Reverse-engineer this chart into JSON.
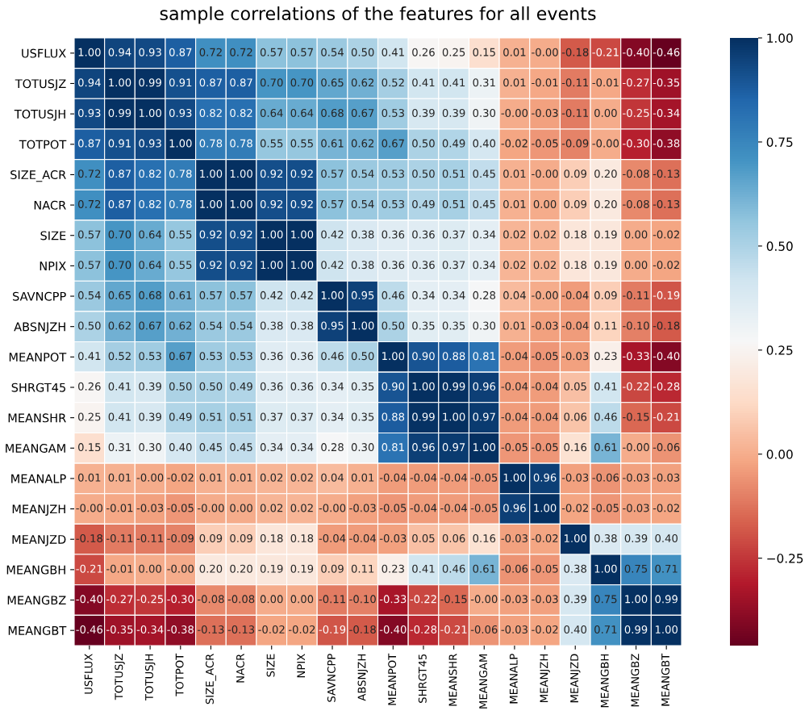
{
  "chart_data": {
    "type": "heatmap",
    "title": "sample correlations of the features for all events",
    "categories": [
      "USFLUX",
      "TOTUSJZ",
      "TOTUSJH",
      "TOTPOT",
      "SIZE_ACR",
      "NACR",
      "SIZE",
      "NPIX",
      "SAVNCPP",
      "ABSNJZH",
      "MEANPOT",
      "SHRGT45",
      "MEANSHR",
      "MEANGAM",
      "MEANALP",
      "MEANJZH",
      "MEANJZD",
      "MEANGBH",
      "MEANGBZ",
      "MEANGBT"
    ],
    "y_categories": [
      "USFLUX",
      "TOTUSJZ",
      "TOTUSJH",
      "TOTPOT",
      "SIZE_ACR",
      "NACR",
      "SIZE",
      "NPIX",
      "SAVNCPP",
      "ABSNJZH",
      "MEANPOT",
      "SHRGT45",
      "MEANSHR",
      "MEANGAM",
      "MEANALP",
      "MEANJZH",
      "MEANJZD",
      "MEANGBH",
      "MEANGBZ",
      "MEANGBT"
    ],
    "cells": [
      [
        1.0,
        0.94,
        0.93,
        0.87,
        0.72,
        0.72,
        0.57,
        0.57,
        0.54,
        0.5,
        0.41,
        0.26,
        0.25,
        0.15,
        0.01,
        -0.0,
        -0.18,
        -0.21,
        -0.4,
        -0.46
      ],
      [
        0.94,
        1.0,
        0.99,
        0.91,
        0.87,
        0.87,
        0.7,
        0.7,
        0.65,
        0.62,
        0.52,
        0.41,
        0.41,
        0.31,
        0.01,
        -0.01,
        -0.11,
        -0.01,
        -0.27,
        -0.35
      ],
      [
        0.93,
        0.99,
        1.0,
        0.93,
        0.82,
        0.82,
        0.64,
        0.64,
        0.68,
        0.67,
        0.53,
        0.39,
        0.39,
        0.3,
        -0.0,
        -0.03,
        -0.11,
        0.0,
        -0.25,
        -0.34
      ],
      [
        0.87,
        0.91,
        0.93,
        1.0,
        0.78,
        0.78,
        0.55,
        0.55,
        0.61,
        0.62,
        0.67,
        0.5,
        0.49,
        0.4,
        -0.02,
        -0.05,
        -0.09,
        -0.0,
        -0.3,
        -0.38
      ],
      [
        0.72,
        0.87,
        0.82,
        0.78,
        1.0,
        1.0,
        0.92,
        0.92,
        0.57,
        0.54,
        0.53,
        0.5,
        0.51,
        0.45,
        0.01,
        -0.0,
        0.09,
        0.2,
        -0.08,
        -0.13
      ],
      [
        0.72,
        0.87,
        0.82,
        0.78,
        1.0,
        1.0,
        0.92,
        0.92,
        0.57,
        0.54,
        0.53,
        0.49,
        0.51,
        0.45,
        0.01,
        0.0,
        0.09,
        0.2,
        -0.08,
        -0.13
      ],
      [
        0.57,
        0.7,
        0.64,
        0.55,
        0.92,
        0.92,
        1.0,
        1.0,
        0.42,
        0.38,
        0.36,
        0.36,
        0.37,
        0.34,
        0.02,
        0.02,
        0.18,
        0.19,
        0.0,
        -0.02
      ],
      [
        0.57,
        0.7,
        0.64,
        0.55,
        0.92,
        0.92,
        1.0,
        1.0,
        0.42,
        0.38,
        0.36,
        0.36,
        0.37,
        0.34,
        0.02,
        0.02,
        0.18,
        0.19,
        0.0,
        -0.02
      ],
      [
        0.54,
        0.65,
        0.68,
        0.61,
        0.57,
        0.57,
        0.42,
        0.42,
        1.0,
        0.95,
        0.46,
        0.34,
        0.34,
        0.28,
        0.04,
        -0.0,
        -0.04,
        0.09,
        -0.11,
        -0.19
      ],
      [
        0.5,
        0.62,
        0.67,
        0.62,
        0.54,
        0.54,
        0.38,
        0.38,
        0.95,
        1.0,
        0.5,
        0.35,
        0.35,
        0.3,
        0.01,
        -0.03,
        -0.04,
        0.11,
        -0.1,
        -0.18
      ],
      [
        0.41,
        0.52,
        0.53,
        0.67,
        0.53,
        0.53,
        0.36,
        0.36,
        0.46,
        0.5,
        1.0,
        0.9,
        0.88,
        0.81,
        -0.04,
        -0.05,
        -0.03,
        0.23,
        -0.33,
        -0.4
      ],
      [
        0.26,
        0.41,
        0.39,
        0.5,
        0.5,
        0.49,
        0.36,
        0.36,
        0.34,
        0.35,
        0.9,
        1.0,
        0.99,
        0.96,
        -0.04,
        -0.04,
        0.05,
        0.41,
        -0.22,
        -0.28
      ],
      [
        0.25,
        0.41,
        0.39,
        0.49,
        0.51,
        0.51,
        0.37,
        0.37,
        0.34,
        0.35,
        0.88,
        0.99,
        1.0,
        0.97,
        -0.04,
        -0.04,
        0.06,
        0.46,
        -0.15,
        -0.21
      ],
      [
        0.15,
        0.31,
        0.3,
        0.4,
        0.45,
        0.45,
        0.34,
        0.34,
        0.28,
        0.3,
        0.81,
        0.96,
        0.97,
        1.0,
        -0.05,
        -0.05,
        0.16,
        0.61,
        -0.0,
        -0.06
      ],
      [
        0.01,
        0.01,
        -0.0,
        -0.02,
        0.01,
        0.01,
        0.02,
        0.02,
        0.04,
        0.01,
        -0.04,
        -0.04,
        -0.04,
        -0.05,
        1.0,
        0.96,
        -0.03,
        -0.06,
        -0.03,
        -0.03
      ],
      [
        -0.0,
        -0.01,
        -0.03,
        -0.05,
        -0.0,
        0.0,
        0.02,
        0.02,
        -0.0,
        -0.03,
        -0.05,
        -0.04,
        -0.04,
        -0.05,
        0.96,
        1.0,
        -0.02,
        -0.05,
        -0.03,
        -0.02
      ],
      [
        -0.18,
        -0.11,
        -0.11,
        -0.09,
        0.09,
        0.09,
        0.18,
        0.18,
        -0.04,
        -0.04,
        -0.03,
        0.05,
        0.06,
        0.16,
        -0.03,
        -0.02,
        1.0,
        0.38,
        0.39,
        0.4
      ],
      [
        -0.21,
        -0.01,
        0.0,
        -0.0,
        0.2,
        0.2,
        0.19,
        0.19,
        0.09,
        0.11,
        0.23,
        0.41,
        0.46,
        0.61,
        -0.06,
        -0.05,
        0.38,
        1.0,
        0.75,
        0.71
      ],
      [
        -0.4,
        -0.27,
        -0.25,
        -0.3,
        -0.08,
        -0.08,
        0.0,
        0.0,
        -0.11,
        -0.1,
        -0.33,
        -0.22,
        -0.15,
        -0.0,
        -0.03,
        -0.03,
        0.39,
        0.75,
        1.0,
        0.99
      ],
      [
        -0.46,
        -0.35,
        -0.34,
        -0.38,
        -0.13,
        -0.13,
        -0.02,
        -0.02,
        -0.19,
        -0.18,
        -0.4,
        -0.28,
        -0.21,
        -0.06,
        -0.03,
        -0.02,
        0.4,
        0.71,
        0.99,
        1.0
      ]
    ],
    "cell_labels": [
      [
        "1.00",
        "0.94",
        "0.93",
        "0.87",
        "0.72",
        "0.72",
        "0.57",
        "0.57",
        "0.54",
        "0.50",
        "0.41",
        "0.26",
        "0.25",
        "0.15",
        "0.01",
        "-0.00",
        "-0.18",
        "-0.21",
        "-0.40",
        "-0.46"
      ],
      [
        "0.94",
        "1.00",
        "0.99",
        "0.91",
        "0.87",
        "0.87",
        "0.70",
        "0.70",
        "0.65",
        "0.62",
        "0.52",
        "0.41",
        "0.41",
        "0.31",
        "0.01",
        "-0.01",
        "-0.11",
        "-0.01",
        "-0.27",
        "-0.35"
      ],
      [
        "0.93",
        "0.99",
        "1.00",
        "0.93",
        "0.82",
        "0.82",
        "0.64",
        "0.64",
        "0.68",
        "0.67",
        "0.53",
        "0.39",
        "0.39",
        "0.30",
        "-0.00",
        "-0.03",
        "-0.11",
        "0.00",
        "-0.25",
        "-0.34"
      ],
      [
        "0.87",
        "0.91",
        "0.93",
        "1.00",
        "0.78",
        "0.78",
        "0.55",
        "0.55",
        "0.61",
        "0.62",
        "0.67",
        "0.50",
        "0.49",
        "0.40",
        "-0.02",
        "-0.05",
        "-0.09",
        "-0.00",
        "-0.30",
        "-0.38"
      ],
      [
        "0.72",
        "0.87",
        "0.82",
        "0.78",
        "1.00",
        "1.00",
        "0.92",
        "0.92",
        "0.57",
        "0.54",
        "0.53",
        "0.50",
        "0.51",
        "0.45",
        "0.01",
        "-0.00",
        "0.09",
        "0.20",
        "-0.08",
        "-0.13"
      ],
      [
        "0.72",
        "0.87",
        "0.82",
        "0.78",
        "1.00",
        "1.00",
        "0.92",
        "0.92",
        "0.57",
        "0.54",
        "0.53",
        "0.49",
        "0.51",
        "0.45",
        "0.01",
        "0.00",
        "0.09",
        "0.20",
        "-0.08",
        "-0.13"
      ],
      [
        "0.57",
        "0.70",
        "0.64",
        "0.55",
        "0.92",
        "0.92",
        "1.00",
        "1.00",
        "0.42",
        "0.38",
        "0.36",
        "0.36",
        "0.37",
        "0.34",
        "0.02",
        "0.02",
        "0.18",
        "0.19",
        "0.00",
        "-0.02"
      ],
      [
        "0.57",
        "0.70",
        "0.64",
        "0.55",
        "0.92",
        "0.92",
        "1.00",
        "1.00",
        "0.42",
        "0.38",
        "0.36",
        "0.36",
        "0.37",
        "0.34",
        "0.02",
        "0.02",
        "0.18",
        "0.19",
        "0.00",
        "-0.02"
      ],
      [
        "0.54",
        "0.65",
        "0.68",
        "0.61",
        "0.57",
        "0.57",
        "0.42",
        "0.42",
        "1.00",
        "0.95",
        "0.46",
        "0.34",
        "0.34",
        "0.28",
        "0.04",
        "-0.00",
        "-0.04",
        "0.09",
        "-0.11",
        "-0.19"
      ],
      [
        "0.50",
        "0.62",
        "0.67",
        "0.62",
        "0.54",
        "0.54",
        "0.38",
        "0.38",
        "0.95",
        "1.00",
        "0.50",
        "0.35",
        "0.35",
        "0.30",
        "0.01",
        "-0.03",
        "-0.04",
        "0.11",
        "-0.10",
        "-0.18"
      ],
      [
        "0.41",
        "0.52",
        "0.53",
        "0.67",
        "0.53",
        "0.53",
        "0.36",
        "0.36",
        "0.46",
        "0.50",
        "1.00",
        "0.90",
        "0.88",
        "0.81",
        "-0.04",
        "-0.05",
        "-0.03",
        "0.23",
        "-0.33",
        "-0.40"
      ],
      [
        "0.26",
        "0.41",
        "0.39",
        "0.50",
        "0.50",
        "0.49",
        "0.36",
        "0.36",
        "0.34",
        "0.35",
        "0.90",
        "1.00",
        "0.99",
        "0.96",
        "-0.04",
        "-0.04",
        "0.05",
        "0.41",
        "-0.22",
        "-0.28"
      ],
      [
        "0.25",
        "0.41",
        "0.39",
        "0.49",
        "0.51",
        "0.51",
        "0.37",
        "0.37",
        "0.34",
        "0.35",
        "0.88",
        "0.99",
        "1.00",
        "0.97",
        "-0.04",
        "-0.04",
        "0.06",
        "0.46",
        "-0.15",
        "-0.21"
      ],
      [
        "0.15",
        "0.31",
        "0.30",
        "0.40",
        "0.45",
        "0.45",
        "0.34",
        "0.34",
        "0.28",
        "0.30",
        "0.81",
        "0.96",
        "0.97",
        "1.00",
        "-0.05",
        "-0.05",
        "0.16",
        "0.61",
        "-0.00",
        "-0.06"
      ],
      [
        "0.01",
        "0.01",
        "-0.00",
        "-0.02",
        "0.01",
        "0.01",
        "0.02",
        "0.02",
        "0.04",
        "0.01",
        "-0.04",
        "-0.04",
        "-0.04",
        "-0.05",
        "1.00",
        "0.96",
        "-0.03",
        "-0.06",
        "-0.03",
        "-0.03"
      ],
      [
        "-0.00",
        "-0.01",
        "-0.03",
        "-0.05",
        "-0.00",
        "0.00",
        "0.02",
        "0.02",
        "-0.00",
        "-0.03",
        "-0.05",
        "-0.04",
        "-0.04",
        "-0.05",
        "0.96",
        "1.00",
        "-0.02",
        "-0.05",
        "-0.03",
        "-0.02"
      ],
      [
        "-0.18",
        "-0.11",
        "-0.11",
        "-0.09",
        "0.09",
        "0.09",
        "0.18",
        "0.18",
        "-0.04",
        "-0.04",
        "-0.03",
        "0.05",
        "0.06",
        "0.16",
        "-0.03",
        "-0.02",
        "1.00",
        "0.38",
        "0.39",
        "0.40"
      ],
      [
        "-0.21",
        "-0.01",
        "0.00",
        "-0.00",
        "0.20",
        "0.20",
        "0.19",
        "0.19",
        "0.09",
        "0.11",
        "0.23",
        "0.41",
        "0.46",
        "0.61",
        "-0.06",
        "-0.05",
        "0.38",
        "1.00",
        "0.75",
        "0.71"
      ],
      [
        "-0.40",
        "-0.27",
        "-0.25",
        "-0.30",
        "-0.08",
        "-0.08",
        "0.00",
        "0.00",
        "-0.11",
        "-0.10",
        "-0.33",
        "-0.22",
        "-0.15",
        "-0.00",
        "-0.03",
        "-0.03",
        "0.39",
        "0.75",
        "1.00",
        "0.99"
      ],
      [
        "-0.46",
        "-0.35",
        "-0.34",
        "-0.38",
        "-0.13",
        "-0.13",
        "-0.02",
        "-0.02",
        "-0.19",
        "-0.18",
        "-0.40",
        "-0.28",
        "-0.21",
        "-0.06",
        "-0.03",
        "-0.02",
        "0.40",
        "0.71",
        "0.99",
        "1.00"
      ]
    ],
    "clim": [
      -0.46,
      1.0
    ],
    "cticks": [
      {
        "value": -0.25,
        "label": "−0.25"
      },
      {
        "value": 0,
        "label": "0.00"
      },
      {
        "value": 0.25,
        "label": "0.25"
      },
      {
        "value": 0.5,
        "label": "0.50"
      },
      {
        "value": 0.75,
        "label": "0.75"
      },
      {
        "value": 1.0,
        "label": "1.00"
      }
    ]
  }
}
